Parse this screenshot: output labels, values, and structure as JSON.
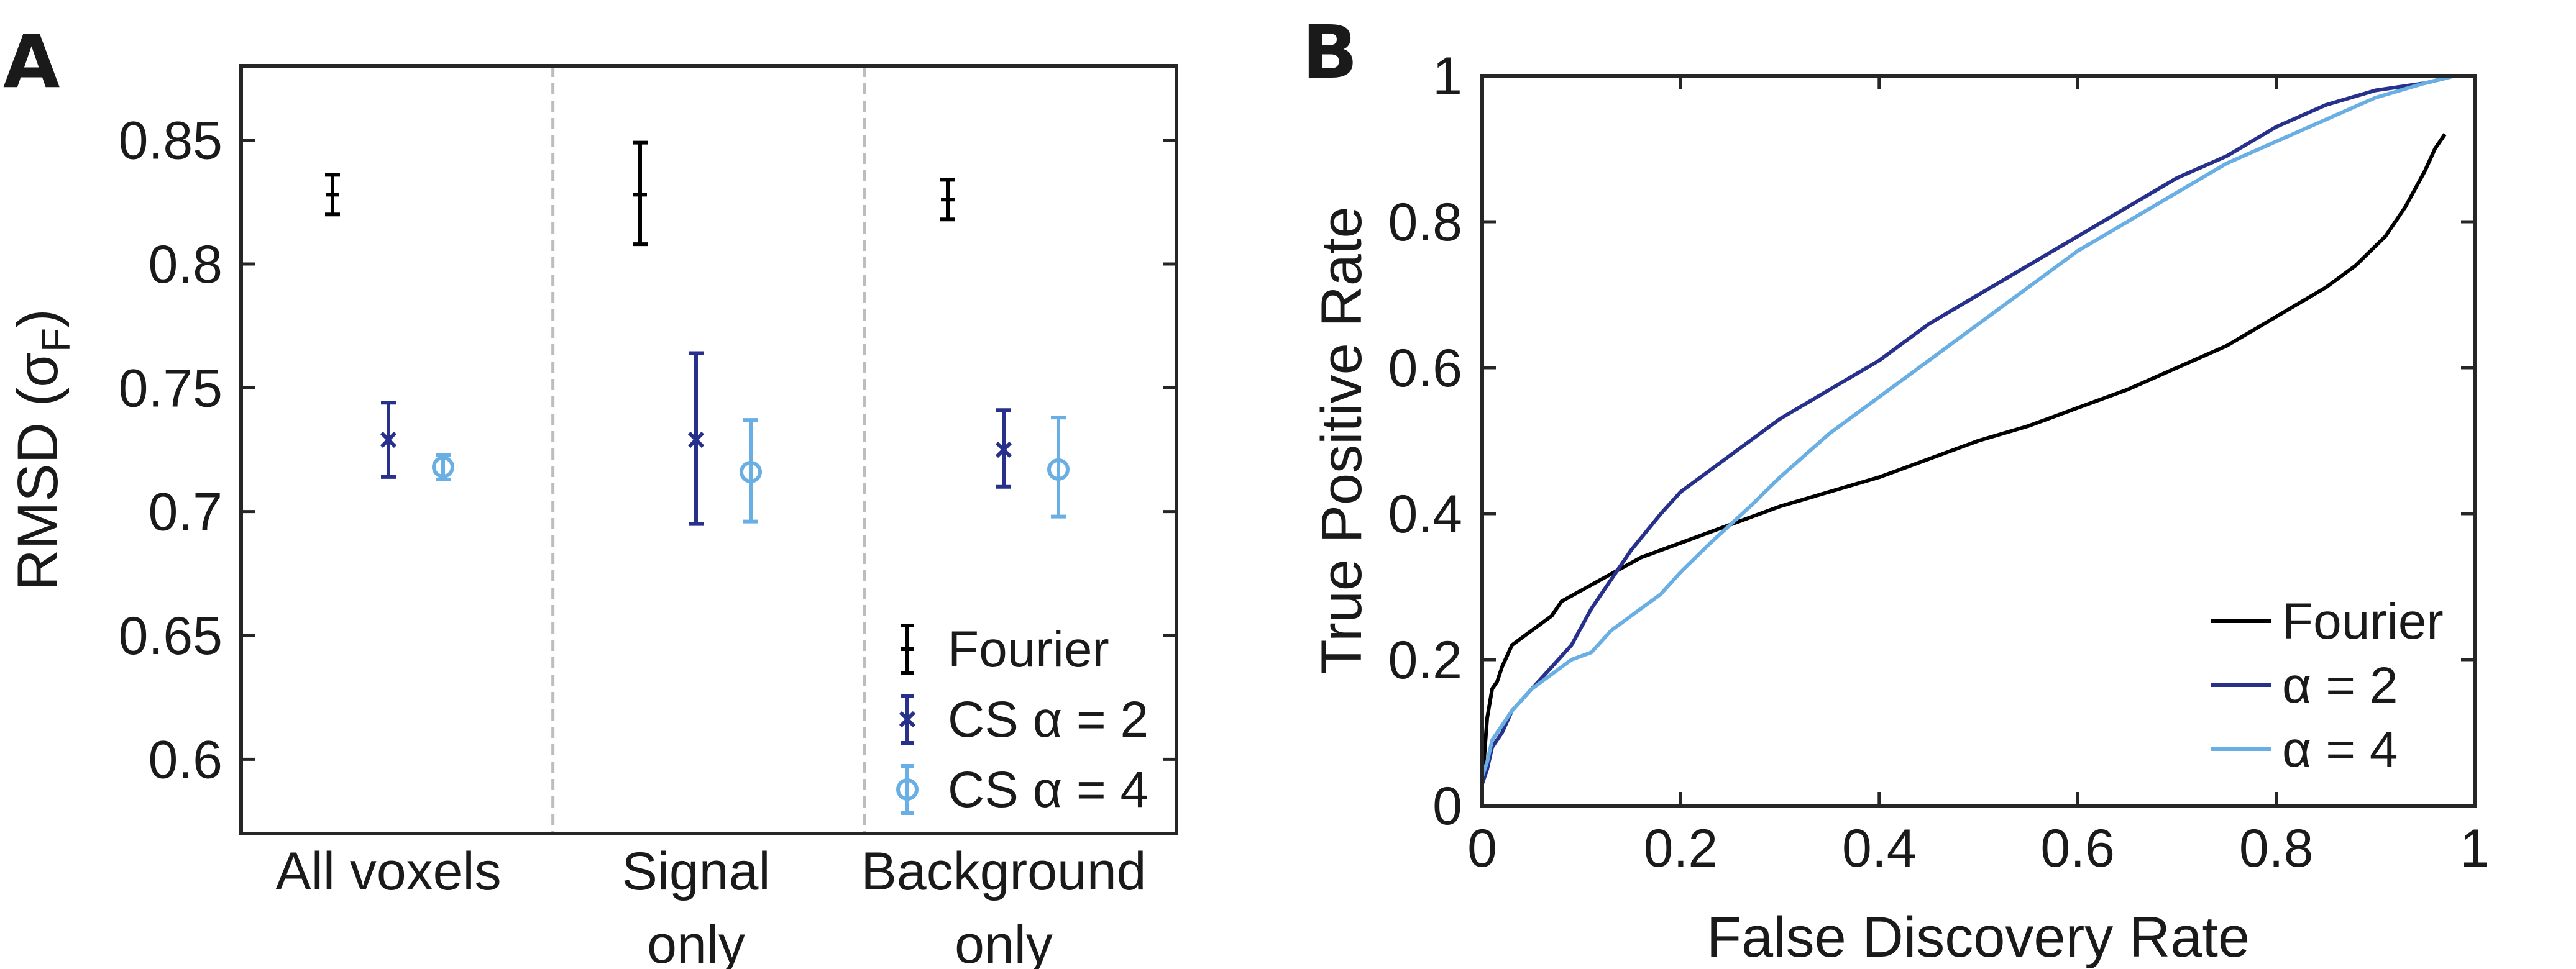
{
  "colors": {
    "fourier": "#000000",
    "cs2": "#27318c",
    "cs4": "#6aafe3",
    "divider": "#bdbdbd",
    "axis": "#262626"
  },
  "chart_data": [
    {
      "type": "errorbar",
      "panel_label": "A",
      "ylabel": "RMSD (σ",
      "ylabel_sub": "F",
      "ylabel_close": ")",
      "ylim": [
        0.57,
        0.88
      ],
      "yticks": [
        0.6,
        0.65,
        0.7,
        0.75,
        0.8,
        0.85
      ],
      "ytick_labels": [
        "0.6",
        "0.65",
        "0.7",
        "0.75",
        "0.8",
        "0.85"
      ],
      "groups": [
        {
          "lines": [
            "All voxels"
          ]
        },
        {
          "lines": [
            "Signal",
            "only"
          ]
        },
        {
          "lines": [
            "Background",
            "only"
          ]
        }
      ],
      "grid": false,
      "legend_position": "bottom-right",
      "series": [
        {
          "name": "Fourier",
          "color_key": "fourier",
          "marker": "plus",
          "points": [
            {
              "group": 0,
              "value": 0.828,
              "low": 0.82,
              "high": 0.836
            },
            {
              "group": 1,
              "value": 0.828,
              "low": 0.808,
              "high": 0.849
            },
            {
              "group": 2,
              "value": 0.826,
              "low": 0.818,
              "high": 0.834
            }
          ]
        },
        {
          "name": "CS α = 2",
          "color_key": "cs2",
          "marker": "x",
          "points": [
            {
              "group": 0,
              "value": 0.729,
              "low": 0.714,
              "high": 0.744
            },
            {
              "group": 1,
              "value": 0.729,
              "low": 0.695,
              "high": 0.764
            },
            {
              "group": 2,
              "value": 0.725,
              "low": 0.71,
              "high": 0.741
            }
          ]
        },
        {
          "name": "CS α = 4",
          "color_key": "cs4",
          "marker": "circle",
          "points": [
            {
              "group": 0,
              "value": 0.718,
              "low": 0.713,
              "high": 0.723
            },
            {
              "group": 1,
              "value": 0.716,
              "low": 0.696,
              "high": 0.737
            },
            {
              "group": 2,
              "value": 0.717,
              "low": 0.698,
              "high": 0.738
            }
          ]
        }
      ]
    },
    {
      "type": "line",
      "panel_label": "B",
      "xlabel": "False Discovery Rate",
      "ylabel": "True Positive Rate",
      "xlim": [
        0,
        1
      ],
      "ylim": [
        0,
        1
      ],
      "xticks": [
        0,
        0.2,
        0.4,
        0.6,
        0.8,
        1
      ],
      "xtick_labels": [
        "0",
        "0.2",
        "0.4",
        "0.6",
        "0.8",
        "1"
      ],
      "yticks": [
        0,
        0.2,
        0.4,
        0.6,
        0.8,
        1
      ],
      "ytick_labels": [
        "0",
        "0.2",
        "0.4",
        "0.6",
        "0.8",
        "1"
      ],
      "grid": false,
      "legend_position": "bottom-right",
      "series": [
        {
          "name": "Fourier",
          "color_key": "fourier",
          "x": [
            0,
            0.005,
            0.01,
            0.015,
            0.02,
            0.03,
            0.05,
            0.07,
            0.08,
            0.12,
            0.16,
            0.2,
            0.25,
            0.3,
            0.35,
            0.4,
            0.45,
            0.5,
            0.55,
            0.6,
            0.65,
            0.7,
            0.75,
            0.8,
            0.85,
            0.88,
            0.91,
            0.93,
            0.95,
            0.96,
            0.97
          ],
          "y": [
            0.03,
            0.12,
            0.16,
            0.17,
            0.19,
            0.22,
            0.24,
            0.26,
            0.28,
            0.31,
            0.34,
            0.36,
            0.385,
            0.41,
            0.43,
            0.45,
            0.475,
            0.5,
            0.52,
            0.545,
            0.57,
            0.6,
            0.63,
            0.67,
            0.71,
            0.74,
            0.78,
            0.82,
            0.87,
            0.9,
            0.92
          ]
        },
        {
          "name": "α = 2",
          "color_key": "cs2",
          "x": [
            0,
            0.005,
            0.01,
            0.02,
            0.03,
            0.05,
            0.07,
            0.09,
            0.11,
            0.13,
            0.15,
            0.18,
            0.2,
            0.23,
            0.27,
            0.3,
            0.35,
            0.4,
            0.45,
            0.5,
            0.55,
            0.6,
            0.65,
            0.7,
            0.75,
            0.8,
            0.85,
            0.9,
            0.95,
            0.98
          ],
          "y": [
            0.03,
            0.05,
            0.08,
            0.1,
            0.13,
            0.16,
            0.19,
            0.22,
            0.27,
            0.31,
            0.35,
            0.4,
            0.43,
            0.46,
            0.5,
            0.53,
            0.57,
            0.61,
            0.66,
            0.7,
            0.74,
            0.78,
            0.82,
            0.86,
            0.89,
            0.93,
            0.96,
            0.98,
            0.99,
            1.0
          ]
        },
        {
          "name": "α = 4",
          "color_key": "cs4",
          "x": [
            0,
            0.005,
            0.01,
            0.02,
            0.03,
            0.05,
            0.07,
            0.09,
            0.11,
            0.13,
            0.15,
            0.18,
            0.2,
            0.23,
            0.27,
            0.3,
            0.35,
            0.4,
            0.45,
            0.5,
            0.55,
            0.6,
            0.65,
            0.7,
            0.75,
            0.8,
            0.85,
            0.9,
            0.95,
            0.98
          ],
          "y": [
            0.04,
            0.06,
            0.09,
            0.11,
            0.13,
            0.16,
            0.18,
            0.2,
            0.21,
            0.24,
            0.26,
            0.29,
            0.32,
            0.36,
            0.41,
            0.45,
            0.51,
            0.56,
            0.61,
            0.66,
            0.71,
            0.76,
            0.8,
            0.84,
            0.88,
            0.91,
            0.94,
            0.97,
            0.99,
            1.0
          ]
        }
      ]
    }
  ]
}
